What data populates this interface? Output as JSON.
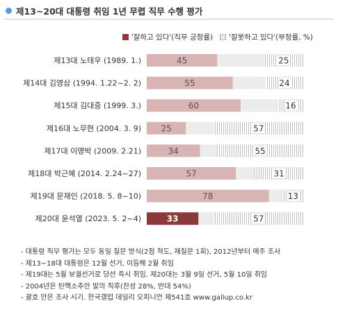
{
  "title": "제13~20대 대통령 취임 1년 무렵 직무 수행 평가",
  "legend": {
    "positive": "'잘하고 있다'(직무 긍정률)",
    "negative": "'잘못하고 있다'(부정률, %)"
  },
  "colors": {
    "positive_bar": "#d8b4b4",
    "positive_highlight": "#8b3a3a",
    "negative_bar": "#e6e6e6",
    "negative_stripe": "#bdbdbd"
  },
  "chart_data": {
    "type": "bar",
    "orientation": "horizontal-stacked",
    "categories": [
      "제13대 노태우 (1989. 1.)",
      "제14대 김영삼 (1994. 1.22~2. 2)",
      "제15대 김대중 (1999. 3.)",
      "제16대 노무현 (2004. 3. 9)",
      "제17대 이명박 (2009. 2.21)",
      "제18대 박근혜 (2014. 2.24~27)",
      "제19대 문재인 (2018. 5. 8~10)",
      "제20대 윤석열 (2023. 5. 2~4)"
    ],
    "series": [
      {
        "name": "'잘하고 있다'(직무 긍정률)",
        "values": [
          45,
          55,
          60,
          25,
          34,
          57,
          78,
          33
        ]
      },
      {
        "name": "'잘못하고 있다'(부정률, %)",
        "values": [
          25,
          24,
          16,
          57,
          55,
          31,
          13,
          57
        ]
      }
    ],
    "highlight_index": 7,
    "xlim": [
      0,
      100
    ]
  },
  "notes": [
    "- 대통령 직무 평가는 모두 동일 질문 방식(2점 척도, 재질문 1회), 2012년부터 매주 조사",
    "- 제13~18대 대통령은 12월 선거, 이듬해 2월 취임",
    "- 제19대는 5월 보궐선거로 당선 즉시 취임. 제20대는 3월 9일 선거, 5월 10일 취임",
    "- 2004년은 탄핵소추안 발의 직후(찬성 28%, 반대 54%)",
    "- 괄호 안은 조사 시기. 한국갤럽 데일리 오피니언 제541호 www.gallup.co.kr"
  ]
}
